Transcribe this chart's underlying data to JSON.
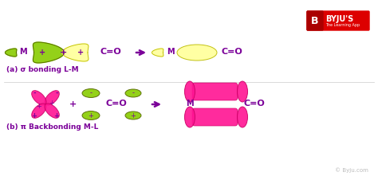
{
  "bg_color": "#ffffff",
  "green_lobe": "#88cc00",
  "green_dark": "#556600",
  "yellow_fill": "#ffff99",
  "yellow_out": "#bbbb00",
  "pink": "#ff1493",
  "pink_dark": "#cc0066",
  "purple": "#7B0099",
  "arrow_color": "#7B0099",
  "sigma_label": "(a) σ bonding L-M",
  "pi_label": "(b) π Backbonding M-L",
  "watermark": "© Byju.com"
}
